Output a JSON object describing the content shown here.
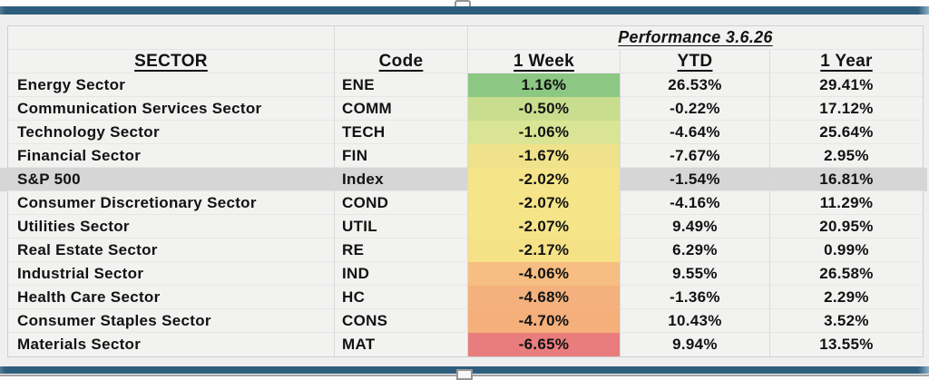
{
  "page": {
    "accent_bar_color": "#2e5e7e",
    "cell_bg": "#f2f2f1",
    "highlight_row_bg": "#d6d6d6",
    "gridline_color": "#d9d9d9"
  },
  "table": {
    "perf_title": "Performance 3.6.26",
    "headers": {
      "sector": "SECTOR",
      "code": "Code",
      "week": "1 Week",
      "ytd": "YTD",
      "year": "1 Year"
    },
    "rows": [
      {
        "sector": "Energy Sector",
        "code": "ENE",
        "week": "1.16%",
        "ytd": "26.53%",
        "year": "29.41%",
        "week_bg": "#8cc783"
      },
      {
        "sector": "Communication Services Sector",
        "code": "COMM",
        "week": "-0.50%",
        "ytd": "-0.22%",
        "year": "17.12%",
        "week_bg": "#c9dd8e"
      },
      {
        "sector": "Technology Sector",
        "code": "TECH",
        "week": "-1.06%",
        "ytd": "-4.64%",
        "year": "25.64%",
        "week_bg": "#d9e594"
      },
      {
        "sector": "Financial Sector",
        "code": "FIN",
        "week": "-1.67%",
        "ytd": "-7.67%",
        "year": "2.95%",
        "week_bg": "#efe28a"
      },
      {
        "sector": "S&P 500",
        "code": "Index",
        "week": "-2.02%",
        "ytd": "-1.54%",
        "year": "16.81%",
        "week_bg": "#f5e489"
      },
      {
        "sector": "Consumer Discretionary Sector",
        "code": "COND",
        "week": "-2.07%",
        "ytd": "-4.16%",
        "year": "11.29%",
        "week_bg": "#f6e489"
      },
      {
        "sector": "Utilities Sector",
        "code": "UTIL",
        "week": "-2.07%",
        "ytd": "9.49%",
        "year": "20.95%",
        "week_bg": "#f6e489"
      },
      {
        "sector": "Real Estate Sector",
        "code": "RE",
        "week": "-2.17%",
        "ytd": "6.29%",
        "year": "0.99%",
        "week_bg": "#f6e286"
      },
      {
        "sector": "Industrial Sector",
        "code": "IND",
        "week": "-4.06%",
        "ytd": "9.55%",
        "year": "26.58%",
        "week_bg": "#f6be82"
      },
      {
        "sector": "Health Care Sector",
        "code": "HC",
        "week": "-4.68%",
        "ytd": "-1.36%",
        "year": "2.29%",
        "week_bg": "#f4b17d"
      },
      {
        "sector": "Consumer Staples Sector",
        "code": "CONS",
        "week": "-4.70%",
        "ytd": "10.43%",
        "year": "3.52%",
        "week_bg": "#f4af7b"
      },
      {
        "sector": "Materials Sector",
        "code": "MAT",
        "week": "-6.65%",
        "ytd": "9.94%",
        "year": "13.55%",
        "week_bg": "#e97d7d"
      }
    ]
  },
  "chart_data": {
    "type": "table",
    "title": "Performance 3.6.26",
    "columns": [
      "SECTOR",
      "Code",
      "1 Week",
      "YTD",
      "1 Year"
    ],
    "rows": [
      [
        "Energy Sector",
        "ENE",
        "1.16%",
        "26.53%",
        "29.41%"
      ],
      [
        "Communication Services Sector",
        "COMM",
        "-0.50%",
        "-0.22%",
        "17.12%"
      ],
      [
        "Technology Sector",
        "TECH",
        "-1.06%",
        "-4.64%",
        "25.64%"
      ],
      [
        "Financial Sector",
        "FIN",
        "-1.67%",
        "-7.67%",
        "2.95%"
      ],
      [
        "S&P 500",
        "Index",
        "-2.02%",
        "-1.54%",
        "16.81%"
      ],
      [
        "Consumer Discretionary Sector",
        "COND",
        "-2.07%",
        "-4.16%",
        "11.29%"
      ],
      [
        "Utilities Sector",
        "UTIL",
        "-2.07%",
        "9.49%",
        "20.95%"
      ],
      [
        "Real Estate Sector",
        "RE",
        "-2.17%",
        "6.29%",
        "0.99%"
      ],
      [
        "Industrial Sector",
        "IND",
        "-4.06%",
        "9.55%",
        "26.58%"
      ],
      [
        "Health Care Sector",
        "HC",
        "-4.68%",
        "-1.36%",
        "2.29%"
      ],
      [
        "Consumer Staples Sector",
        "CONS",
        "-4.70%",
        "10.43%",
        "3.52%"
      ],
      [
        "Materials Sector",
        "MAT",
        "-6.65%",
        "9.94%",
        "13.55%"
      ]
    ],
    "notes": "1 Week column uses red-yellow-green heatmap conditional formatting; S&P 500 row highlighted gray; sorted descending by 1 Week performance"
  }
}
